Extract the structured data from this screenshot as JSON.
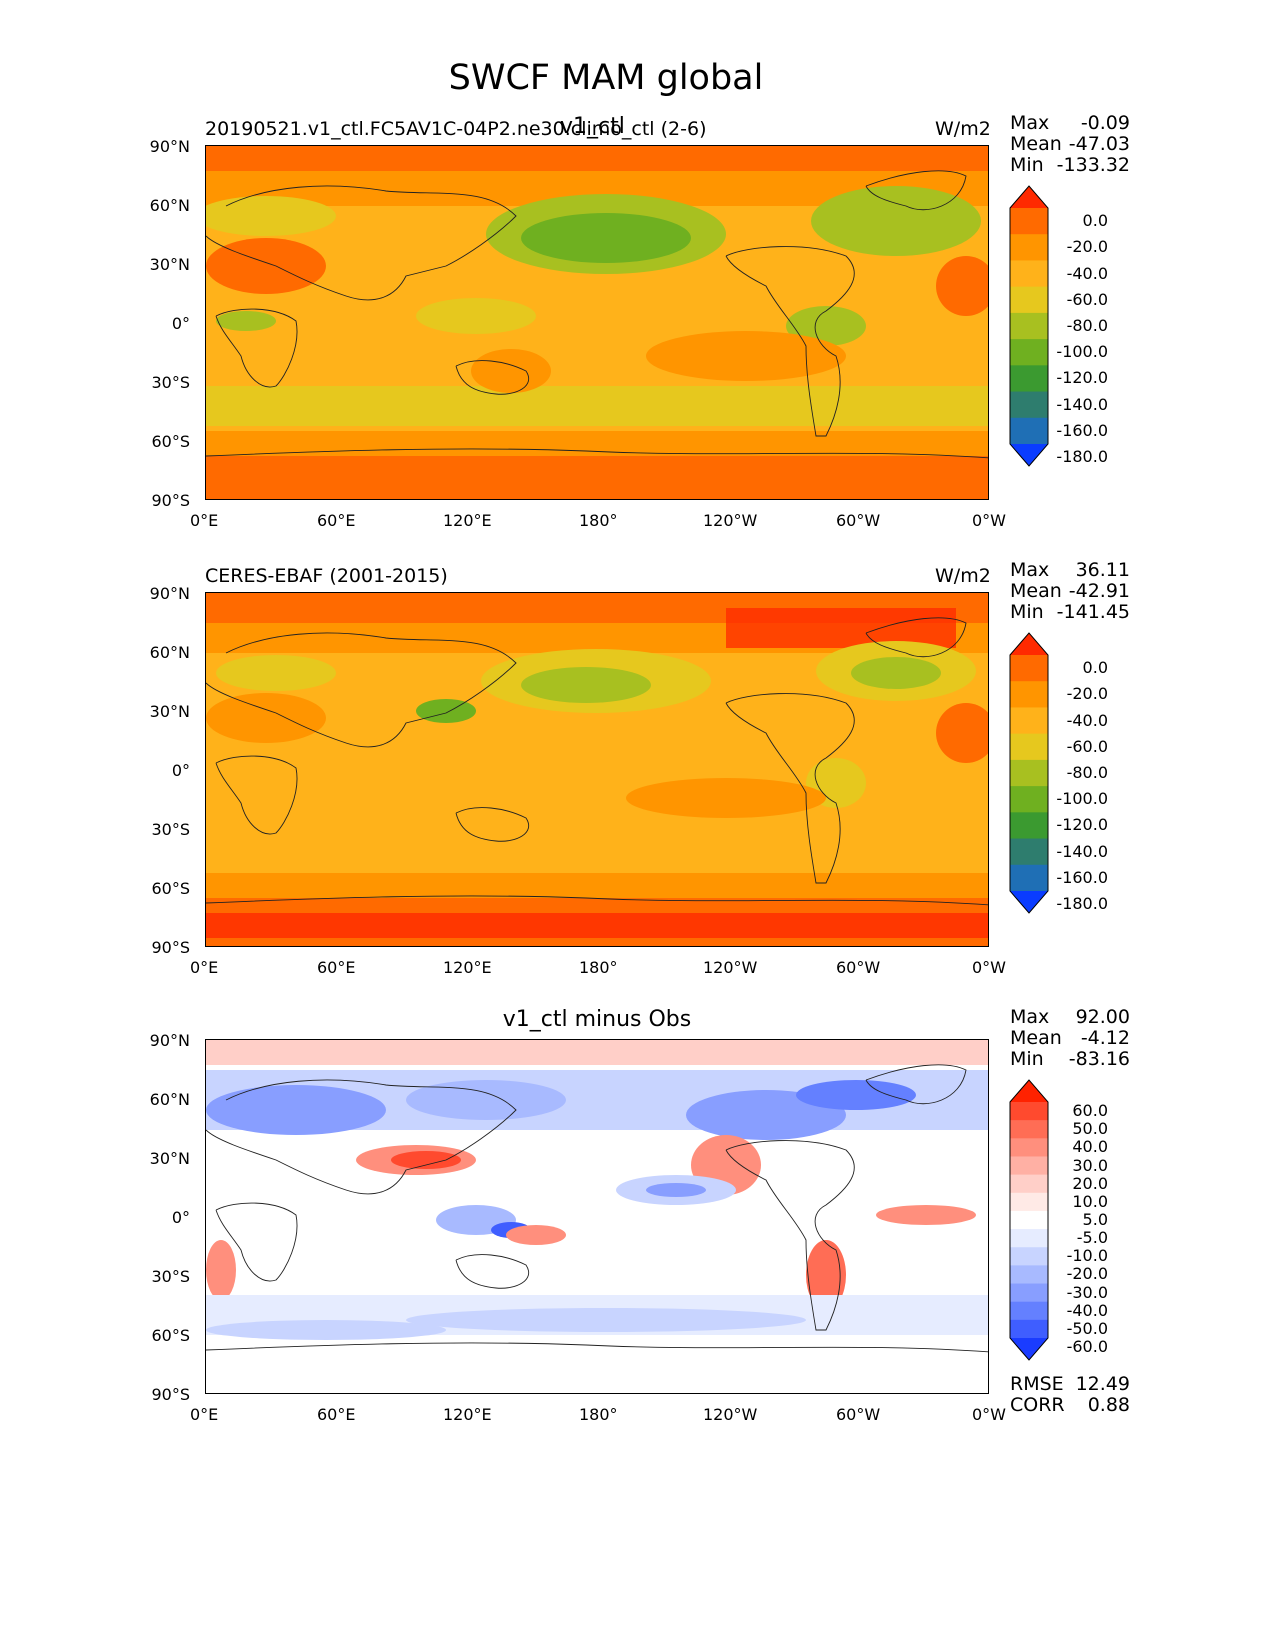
{
  "figure": {
    "title": "SWCF MAM global"
  },
  "lon_ticks": [
    "0°E",
    "60°E",
    "120°E",
    "180°",
    "120°W",
    "60°W",
    "0°W"
  ],
  "lat_ticks": [
    "90°N",
    "60°N",
    "30°N",
    "0°",
    "30°S",
    "60°S",
    "90°S"
  ],
  "panels": [
    {
      "left_title": "20190521.v1_ctl.FC5AV1C-04P2.ne30.climo_ctl (2-6)",
      "center_title": "v1_ctl",
      "units": "W/m2",
      "stats": {
        "max_label": "Max",
        "max": "-0.09",
        "mean_label": "Mean",
        "mean": "-47.03",
        "min_label": "Min",
        "min": "-133.32"
      },
      "colorbar": {
        "levels": [
          "0.0",
          "-20.0",
          "-40.0",
          "-60.0",
          "-80.0",
          "-100.0",
          "-120.0",
          "-140.0",
          "-160.0",
          "-180.0"
        ],
        "colors": [
          "#ff2a00",
          "#ff6a00",
          "#ff9500",
          "#ffb21a",
          "#e6c81e",
          "#a8c020",
          "#6fb020",
          "#3b9a30",
          "#2e7d6e",
          "#1f6fb5",
          "#0a3cff"
        ]
      }
    },
    {
      "left_title": "CERES-EBAF (2001-2015)",
      "center_title": "",
      "units": "W/m2",
      "stats": {
        "max_label": "Max",
        "max": "36.11",
        "mean_label": "Mean",
        "mean": "-42.91",
        "min_label": "Min",
        "min": "-141.45"
      },
      "colorbar": {
        "levels": [
          "0.0",
          "-20.0",
          "-40.0",
          "-60.0",
          "-80.0",
          "-100.0",
          "-120.0",
          "-140.0",
          "-160.0",
          "-180.0"
        ],
        "colors": [
          "#ff2a00",
          "#ff6a00",
          "#ff9500",
          "#ffb21a",
          "#e6c81e",
          "#a8c020",
          "#6fb020",
          "#3b9a30",
          "#2e7d6e",
          "#1f6fb5",
          "#0a3cff"
        ]
      }
    },
    {
      "left_title": "",
      "center_title": "v1_ctl minus Obs",
      "units": "",
      "stats": {
        "max_label": "Max",
        "max": "92.00",
        "mean_label": "Mean",
        "mean": "-4.12",
        "min_label": "Min",
        "min": "-83.16"
      },
      "colorbar": {
        "levels": [
          "60.0",
          "50.0",
          "40.0",
          "30.0",
          "20.0",
          "10.0",
          "5.0",
          "-5.0",
          "-10.0",
          "-20.0",
          "-30.0",
          "-40.0",
          "-50.0",
          "-60.0"
        ],
        "colors": [
          "#ff2200",
          "#ff4a2e",
          "#ff6d55",
          "#ff8f7d",
          "#ffb0a4",
          "#ffcfc8",
          "#ffeae6",
          "#ffffff",
          "#e6ecff",
          "#c8d4ff",
          "#a8baff",
          "#889eff",
          "#6480ff",
          "#3f5eff",
          "#1a3cff"
        ]
      },
      "metrics": {
        "rmse_label": "RMSE",
        "rmse": "12.49",
        "corr_label": "CORR",
        "corr": "0.88"
      }
    }
  ]
}
